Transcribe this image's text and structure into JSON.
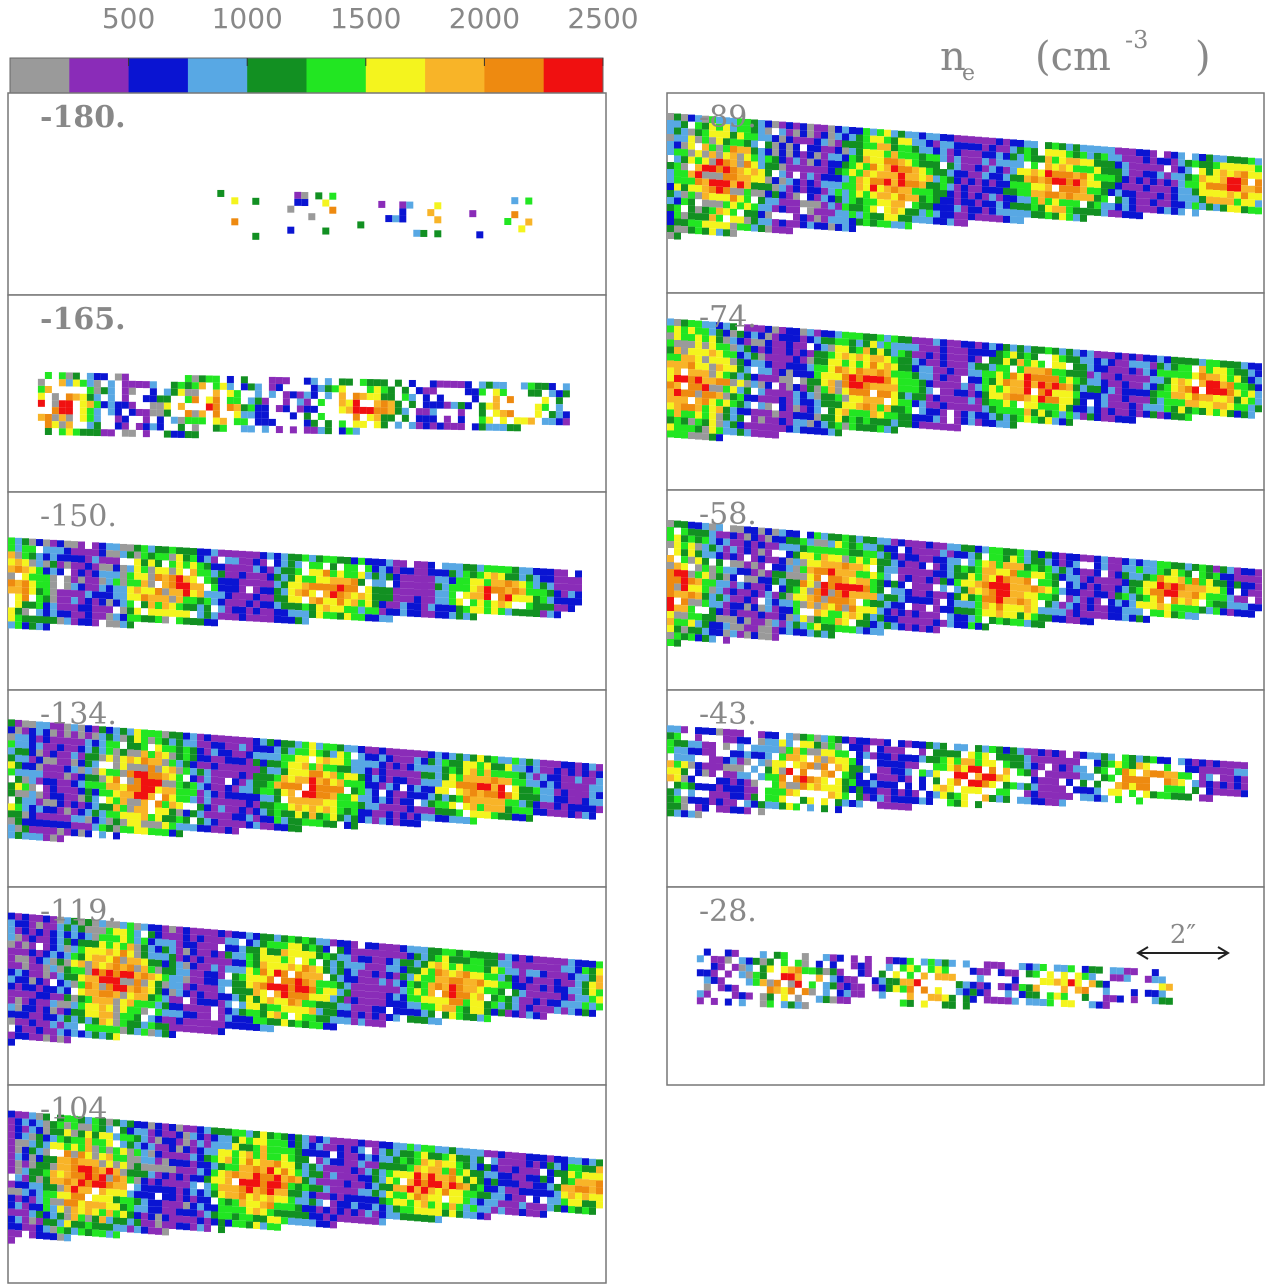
{
  "colorbar": {
    "range": [
      0,
      2500
    ],
    "ticks": [
      500,
      1000,
      1500,
      2000,
      2500
    ],
    "colors": [
      "#9a9a9a",
      "#8a2cb8",
      "#0a14d2",
      "#58a8e4",
      "#129022",
      "#22e622",
      "#f4f41e",
      "#f8b428",
      "#ee8a10",
      "#f01010"
    ]
  },
  "unit_label": {
    "symbol": "n",
    "subscript": "e",
    "unit": "(cm",
    "exponent": "-3",
    "close": ")"
  },
  "panels": [
    "-180.",
    "-165.",
    "-150.",
    "-134.",
    "-119.",
    "-104",
    "-89.",
    "-74.",
    "-58.",
    "-43.",
    "-28."
  ],
  "scale_bar": "2″"
}
